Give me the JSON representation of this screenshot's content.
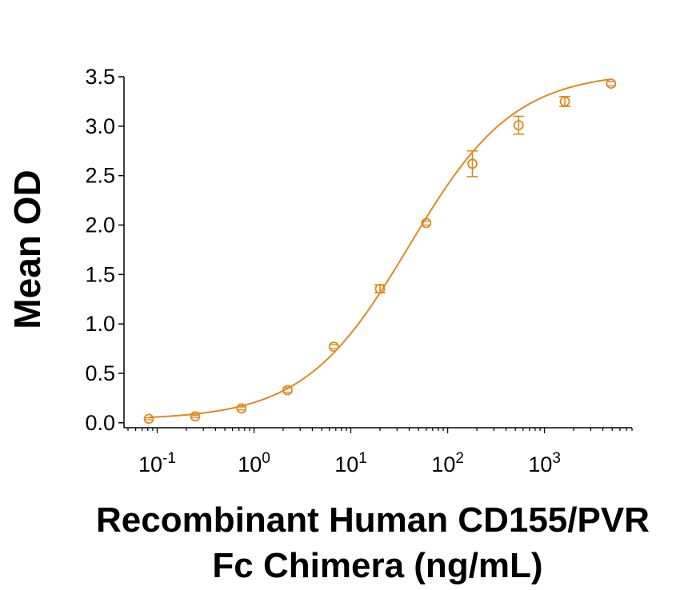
{
  "chart_data": {
    "type": "scatter",
    "x_scale": "log",
    "xlabel_line1": "Recombinant Human CD155/PVR",
    "xlabel_line2": "Fc Chimera (ng/mL)",
    "ylabel": "Mean OD",
    "xlim": [
      0.05,
      8000
    ],
    "ylim": [
      -0.05,
      3.5
    ],
    "x_ticks": [
      {
        "base": "10",
        "exp": "-1",
        "value": 0.1
      },
      {
        "base": "10",
        "exp": "0",
        "value": 1
      },
      {
        "base": "10",
        "exp": "1",
        "value": 10
      },
      {
        "base": "10",
        "exp": "2",
        "value": 100
      },
      {
        "base": "10",
        "exp": "3",
        "value": 1000
      }
    ],
    "y_ticks": [
      "0.0",
      "0.5",
      "1.0",
      "1.5",
      "2.0",
      "2.5",
      "3.0",
      "3.5"
    ],
    "y_tick_values": [
      0,
      0.5,
      1.0,
      1.5,
      2.0,
      2.5,
      3.0,
      3.5
    ],
    "color": "#E08A1E",
    "series": [
      {
        "x": [
          0.082,
          0.247,
          0.741,
          2.22,
          6.67,
          20,
          60,
          180,
          540,
          1620,
          4860
        ],
        "y": [
          0.04,
          0.065,
          0.145,
          0.33,
          0.77,
          1.355,
          2.02,
          2.62,
          3.01,
          3.25,
          3.43
        ],
        "error": [
          0.01,
          0.01,
          0.015,
          0.025,
          0.02,
          0.04,
          0.02,
          0.13,
          0.09,
          0.05,
          0.02
        ]
      }
    ],
    "fit_curve": {
      "model": "4PL",
      "bottom": 0.03,
      "top": 3.55,
      "ec50": 40,
      "hill": 0.8
    },
    "grid": false,
    "legend": "none"
  }
}
